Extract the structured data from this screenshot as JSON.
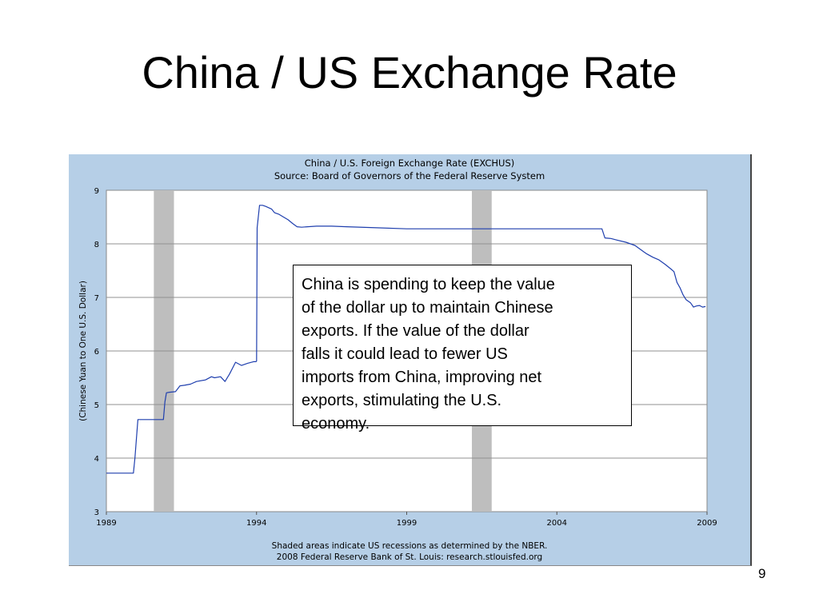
{
  "slide": {
    "title": "China / US Exchange Rate",
    "page_number": "9",
    "callout_lines": [
      "China is spending to keep the value",
      "of the dollar up to maintain Chinese",
      "exports.  If the value of the dollar",
      "falls it could lead to fewer US",
      "imports from China, improving net",
      "exports, stimulating the U.S.",
      "economy."
    ]
  },
  "chart_data": {
    "type": "line",
    "title": "China / U.S. Foreign Exchange Rate (EXCHUS)",
    "subtitle": "Source: Board of Governors of the Federal Reserve System",
    "ylabel": "(Chinese Yuan to One U.S. Dollar)",
    "footer_lines": [
      "Shaded areas indicate US recessions as determined by the NBER.",
      "2008 Federal Reserve Bank of St. Louis: research.stlouisfed.org"
    ],
    "xlim": [
      1989,
      2009
    ],
    "ylim": [
      3,
      9
    ],
    "x_ticks": [
      1989,
      1994,
      1999,
      2004,
      2009
    ],
    "y_ticks": [
      3,
      4,
      5,
      6,
      7,
      8,
      9
    ],
    "grid": true,
    "recessions": [
      [
        1990.58,
        1991.25
      ],
      [
        2001.17,
        2001.83
      ]
    ],
    "colors": {
      "frame_bg": "#b6cfe7",
      "plot_bg": "#ffffff",
      "line": "#1f3fae",
      "recession": "#bebebe",
      "grid": "#909090"
    },
    "series": [
      {
        "x": [
          1989.0,
          1989.9,
          1989.95,
          1990.05,
          1990.1,
          1990.9,
          1990.95,
          1991.0,
          1991.1,
          1991.3,
          1991.45,
          1991.6,
          1991.8,
          1992.0,
          1992.3,
          1992.5,
          1992.6,
          1992.8,
          1992.95,
          1993.1,
          1993.3,
          1993.5,
          1993.7,
          1993.9,
          1993.98,
          1994.0,
          1994.02,
          1994.1,
          1994.2,
          1994.3,
          1994.5,
          1994.6,
          1994.75,
          1994.9,
          1995.05,
          1995.2,
          1995.35,
          1995.5,
          1995.7,
          1996.0,
          1996.5,
          1997.0,
          1998.0,
          1999.0,
          2000.0,
          2001.0,
          2002.0,
          2003.0,
          2004.0,
          2005.0,
          2005.5,
          2005.6,
          2005.8,
          2006.0,
          2006.3,
          2006.6,
          2006.9,
          2007.0,
          2007.2,
          2007.4,
          2007.6,
          2007.8,
          2007.9,
          2008.0,
          2008.1,
          2008.2,
          2008.3,
          2008.45,
          2008.55,
          2008.65,
          2008.75,
          2008.85,
          2008.95
        ],
        "y": [
          3.72,
          3.72,
          4.0,
          4.72,
          4.72,
          4.72,
          5.05,
          5.22,
          5.23,
          5.24,
          5.35,
          5.36,
          5.38,
          5.43,
          5.46,
          5.52,
          5.5,
          5.52,
          5.43,
          5.57,
          5.79,
          5.73,
          5.77,
          5.8,
          5.8,
          5.81,
          8.3,
          8.72,
          8.72,
          8.7,
          8.65,
          8.58,
          8.55,
          8.5,
          8.45,
          8.38,
          8.32,
          8.31,
          8.32,
          8.33,
          8.33,
          8.32,
          8.3,
          8.28,
          8.28,
          8.28,
          8.28,
          8.28,
          8.28,
          8.28,
          8.28,
          8.11,
          8.1,
          8.07,
          8.03,
          7.97,
          7.85,
          7.81,
          7.75,
          7.7,
          7.62,
          7.53,
          7.48,
          7.28,
          7.18,
          7.05,
          6.96,
          6.9,
          6.82,
          6.84,
          6.85,
          6.82,
          6.83
        ]
      }
    ]
  }
}
